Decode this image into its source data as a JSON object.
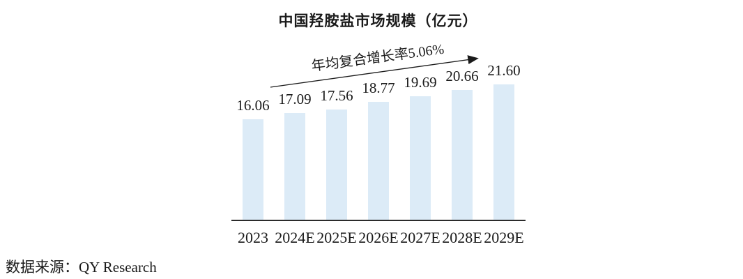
{
  "chart_data": {
    "type": "bar",
    "title": "中国羟胺盐市场规模（亿元）",
    "categories": [
      "2023",
      "2024E",
      "2025E",
      "2026E",
      "2027E",
      "2028E",
      "2029E"
    ],
    "values": [
      16.06,
      17.09,
      17.56,
      18.77,
      19.69,
      20.66,
      21.6
    ],
    "value_labels": [
      "16.06",
      "17.09",
      "17.56",
      "18.77",
      "19.69",
      "20.66",
      "21.60"
    ],
    "annotation": "年均复合增长率5.06%",
    "source": "数据来源：QY Research",
    "bar_color": "#dcebf7",
    "axis_color": "#2b2b2b",
    "arrow_color": "#1a1a1a",
    "ylim": [
      0,
      22
    ],
    "grid": false,
    "legend": "none"
  }
}
